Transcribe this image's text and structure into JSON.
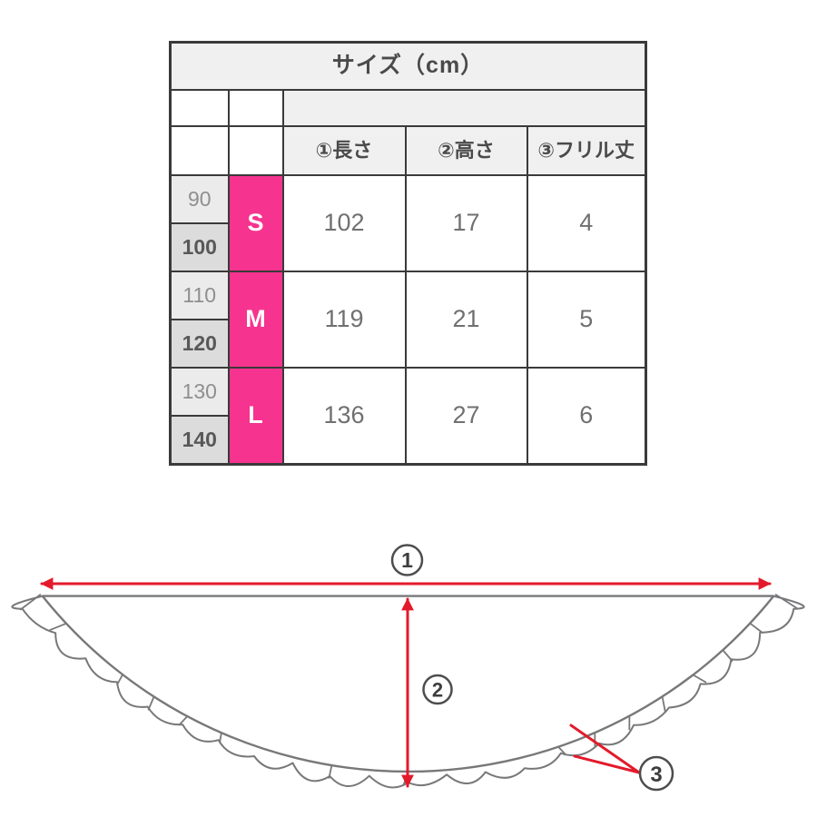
{
  "table": {
    "title": "サイズ（cm）",
    "columns": [
      "①長さ",
      "②高さ",
      "③フリル丈"
    ],
    "rows": [
      {
        "ages": [
          "90",
          "100"
        ],
        "size": "S",
        "values": [
          "102",
          "17",
          "4"
        ]
      },
      {
        "ages": [
          "110",
          "120"
        ],
        "size": "M",
        "values": [
          "119",
          "21",
          "5"
        ]
      },
      {
        "ages": [
          "130",
          "140"
        ],
        "size": "L",
        "values": [
          "136",
          "27",
          "6"
        ]
      }
    ]
  },
  "diagram": {
    "labels": [
      "1",
      "2",
      "3"
    ]
  },
  "colors": {
    "accent_pink": "#F6338F",
    "arrow_red": "#E31A2B",
    "line_gray": "#77787A",
    "border_dark": "#3A3A3A"
  }
}
